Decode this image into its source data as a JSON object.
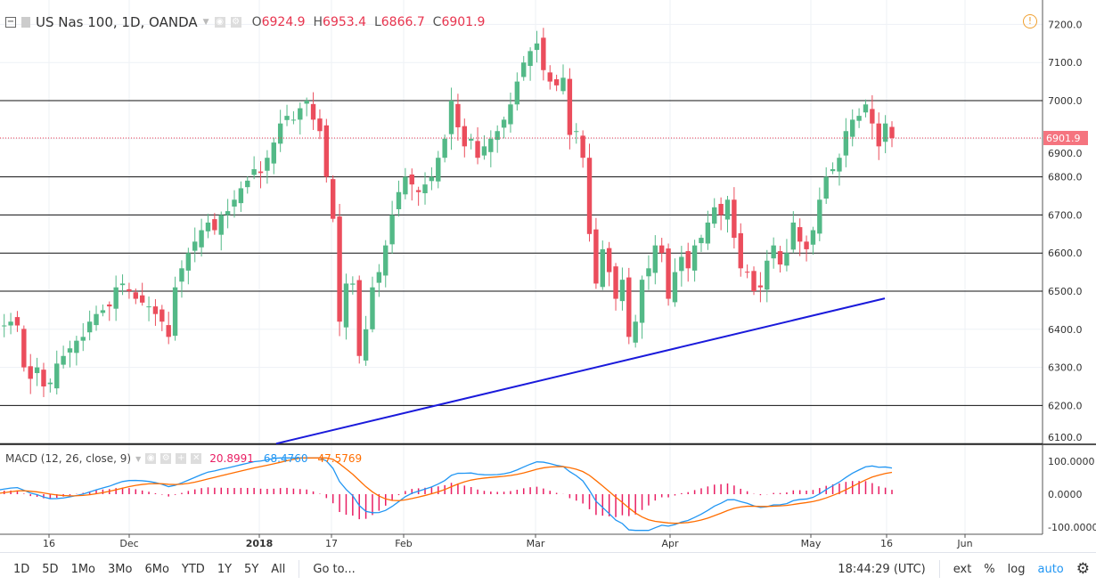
{
  "header": {
    "symbol": "US Nas 100, 1D, OANDA",
    "o_label": "O",
    "o": "6924.9",
    "h_label": "H",
    "h": "6953.4",
    "l_label": "L",
    "l": "6866.7",
    "c_label": "C",
    "c": "6901.9"
  },
  "macd": {
    "title": "MACD (12, 26, close, 9)",
    "hist": "20.8991",
    "macd": "68.4760",
    "signal": "47.5769",
    "axis": [
      "100.0000",
      "0.0000",
      "-100.0000"
    ]
  },
  "colors": {
    "up": "#53b987",
    "down": "#eb4d5c",
    "trend": "#1a1adb",
    "macd": "#2196f3",
    "signal": "#ff6d00",
    "hist": "#e91e63"
  },
  "chart_data": {
    "type": "candlestick",
    "symbol": "US Nas 100",
    "interval": "1D",
    "ylim": [
      6080,
      7240
    ],
    "y_ticks": [
      "7200.0",
      "7100.0",
      "7000.0",
      "6900.0",
      "6800.0",
      "6700.0",
      "6600.0",
      "6500.0",
      "6400.0",
      "6300.0",
      "6200.0",
      "6100.0"
    ],
    "last_price": "6901.9",
    "x_ticks": [
      "16",
      "Dec",
      "2018",
      "17",
      "Feb",
      "Mar",
      "Apr",
      "May",
      "16",
      "Jun"
    ],
    "horizontal_levels": [
      7000,
      6800,
      6700,
      6600,
      6500,
      6200
    ],
    "trendline": {
      "from_price": 6100,
      "to_price": 6481
    },
    "close": [
      6340,
      6330,
      6320,
      6310,
      6300,
      6340,
      6320,
      6300,
      6330,
      6360,
      6340,
      6380,
      6400,
      6420,
      6410,
      6420,
      6410,
      6300,
      6270,
      6300,
      6250,
      6260,
      6310,
      6330,
      6350,
      6370,
      6380,
      6420,
      6440,
      6450,
      6460,
      6510,
      6520,
      6500,
      6480,
      6470,
      6460,
      6440,
      6420,
      6380,
      6510,
      6560,
      6600,
      6630,
      6660,
      6680,
      6660,
      6700,
      6710,
      6740,
      6770,
      6790,
      6820,
      6810,
      6850,
      6890,
      6940,
      6960,
      6950,
      6980,
      7000,
      6950,
      6920,
      6800,
      6690,
      6420,
      6520,
      6520,
      6330,
      6400,
      6510,
      6550,
      6620,
      6700,
      6760,
      6800,
      6780,
      6760,
      6780,
      6800,
      6850,
      6900,
      7000,
      6930,
      6880,
      6900,
      6850,
      6880,
      6900,
      6920,
      6950,
      6990,
      7050,
      7100,
      7130,
      7150,
      7080,
      7050,
      7040,
      7060,
      6910,
      6920,
      6850,
      6650,
      6520,
      6610,
      6550,
      6480,
      6530,
      6380,
      6420,
      6530,
      6560,
      6620,
      6600,
      6480,
      6550,
      6590,
      6560,
      6620,
      6640,
      6680,
      6720,
      6700,
      6740,
      6640,
      6560,
      6550,
      6500,
      6510,
      6580,
      6620,
      6570,
      6600,
      6680,
      6630,
      6610,
      6660,
      6740,
      6800,
      6820,
      6850,
      6920,
      6950,
      6960,
      6990,
      6940,
      6880,
      6940,
      6902
    ]
  },
  "bottom": {
    "ranges": [
      "1D",
      "5D",
      "1Mo",
      "3Mo",
      "6Mo",
      "YTD",
      "1Y",
      "5Y",
      "All"
    ],
    "goto": "Go to...",
    "time": "18:44:29 (UTC)",
    "ext": "ext",
    "pct": "%",
    "log": "log",
    "auto": "auto"
  }
}
